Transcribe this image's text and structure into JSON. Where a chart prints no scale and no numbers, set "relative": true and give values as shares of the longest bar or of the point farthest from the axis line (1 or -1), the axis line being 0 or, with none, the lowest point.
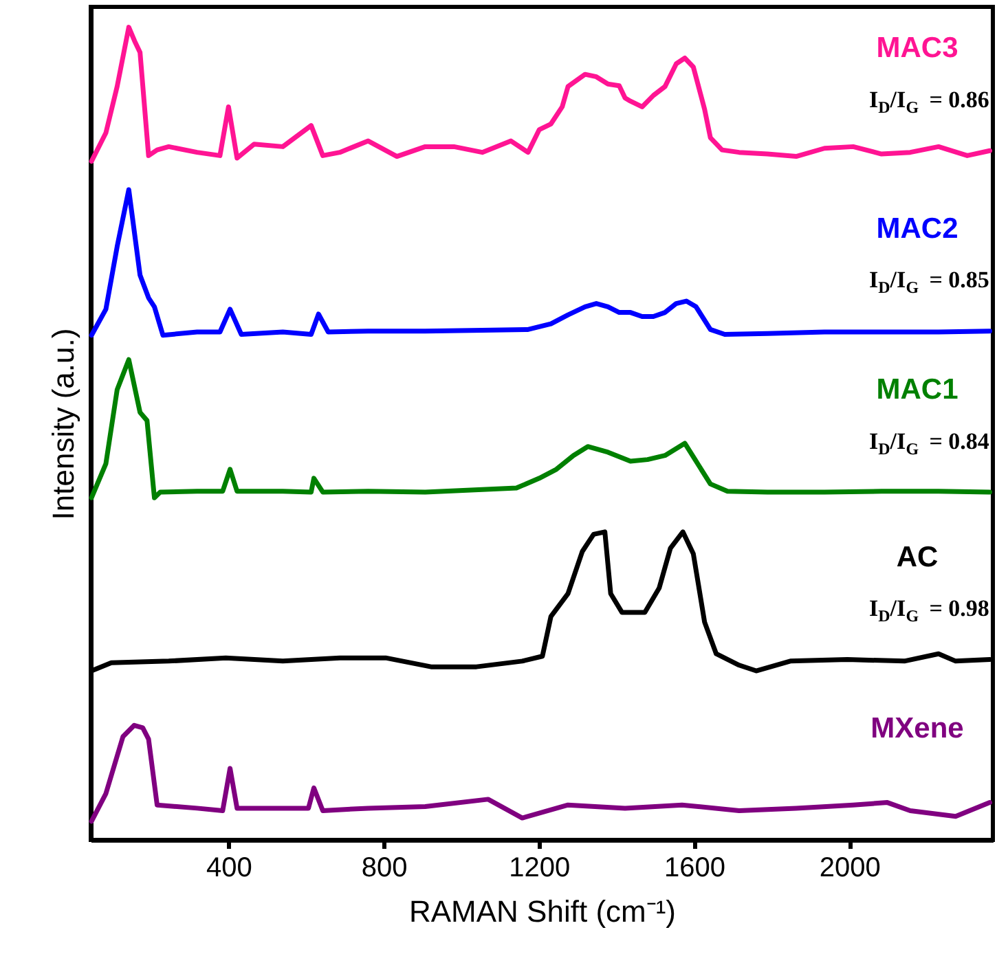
{
  "chart_data": {
    "type": "line",
    "relative": true,
    "xlabel": "RAMAN Shift (cm⁻¹)",
    "ylabel": "Intensity (a.u.)",
    "xlim": [
      45,
      2370
    ],
    "xticks": [
      400,
      800,
      1200,
      1600,
      2000
    ],
    "grid": false,
    "legend": false,
    "series": [
      {
        "name": "MAC3",
        "color": "#ff1493",
        "x": [
          47,
          84,
          113,
          143,
          158,
          172,
          194,
          216,
          246,
          319,
          378,
          400,
          422,
          466,
          540,
          613,
          643,
          687,
          760,
          834,
          907,
          981,
          1054,
          1128,
          1172,
          1201,
          1231,
          1260,
          1275,
          1304,
          1319,
          1348,
          1378,
          1407,
          1422,
          1436,
          1466,
          1495,
          1525,
          1554,
          1576,
          1598,
          1627,
          1642,
          1672,
          1716,
          1789,
          1863,
          1936,
          2010,
          2083,
          2157,
          2230,
          2304,
          2362
        ],
        "values": [
          0.835,
          0.87,
          0.927,
          1.0,
          0.983,
          0.969,
          0.842,
          0.849,
          0.853,
          0.846,
          0.842,
          0.902,
          0.839,
          0.856,
          0.853,
          0.879,
          0.842,
          0.846,
          0.86,
          0.841,
          0.853,
          0.853,
          0.846,
          0.86,
          0.846,
          0.874,
          0.881,
          0.902,
          0.927,
          0.937,
          0.942,
          0.939,
          0.93,
          0.928,
          0.913,
          0.909,
          0.902,
          0.916,
          0.927,
          0.955,
          0.962,
          0.951,
          0.899,
          0.864,
          0.849,
          0.846,
          0.844,
          0.841,
          0.851,
          0.853,
          0.844,
          0.846,
          0.853,
          0.842,
          0.848
        ]
      },
      {
        "name": "MAC2",
        "color": "#0000ff",
        "x": [
          47,
          84,
          113,
          143,
          172,
          194,
          209,
          231,
          319,
          378,
          404,
          433,
          540,
          613,
          632,
          657,
          760,
          907,
          1054,
          1172,
          1231,
          1275,
          1319,
          1348,
          1378,
          1407,
          1436,
          1466,
          1495,
          1525,
          1554,
          1580,
          1605,
          1642,
          1679,
          1789,
          1936,
          2083,
          2230,
          2362
        ],
        "values": [
          0.621,
          0.653,
          0.73,
          0.8,
          0.695,
          0.667,
          0.656,
          0.621,
          0.625,
          0.625,
          0.653,
          0.622,
          0.625,
          0.622,
          0.647,
          0.625,
          0.626,
          0.626,
          0.627,
          0.628,
          0.635,
          0.646,
          0.656,
          0.66,
          0.656,
          0.649,
          0.649,
          0.644,
          0.644,
          0.649,
          0.66,
          0.663,
          0.656,
          0.628,
          0.622,
          0.623,
          0.625,
          0.625,
          0.625,
          0.626
        ]
      },
      {
        "name": "MAC1",
        "color": "#008000",
        "x": [
          47,
          84,
          113,
          143,
          172,
          190,
          209,
          224,
          319,
          385,
          404,
          422,
          540,
          613,
          620,
          643,
          760,
          907,
          1054,
          1142,
          1201,
          1245,
          1289,
          1326,
          1378,
          1436,
          1480,
          1525,
          1576,
          1605,
          1642,
          1686,
          1789,
          1936,
          2083,
          2230,
          2362
        ],
        "values": [
          0.421,
          0.463,
          0.554,
          0.591,
          0.526,
          0.516,
          0.421,
          0.428,
          0.429,
          0.429,
          0.456,
          0.429,
          0.429,
          0.428,
          0.445,
          0.428,
          0.429,
          0.428,
          0.431,
          0.433,
          0.445,
          0.456,
          0.473,
          0.484,
          0.477,
          0.466,
          0.468,
          0.473,
          0.488,
          0.466,
          0.438,
          0.429,
          0.428,
          0.428,
          0.429,
          0.429,
          0.428
        ]
      },
      {
        "name": "AC",
        "color": "#000000",
        "x": [
          47,
          98,
          246,
          393,
          540,
          687,
          805,
          922,
          1039,
          1157,
          1209,
          1231,
          1275,
          1312,
          1341,
          1370,
          1385,
          1414,
          1473,
          1510,
          1539,
          1571,
          1598,
          1627,
          1657,
          1716,
          1760,
          1848,
          1995,
          2142,
          2230,
          2274,
          2362
        ],
        "values": [
          0.208,
          0.218,
          0.22,
          0.224,
          0.22,
          0.224,
          0.224,
          0.213,
          0.213,
          0.22,
          0.226,
          0.275,
          0.303,
          0.355,
          0.376,
          0.379,
          0.303,
          0.28,
          0.28,
          0.31,
          0.359,
          0.379,
          0.352,
          0.268,
          0.229,
          0.215,
          0.208,
          0.22,
          0.222,
          0.22,
          0.229,
          0.22,
          0.222
        ]
      },
      {
        "name": "MXene",
        "color": "#800080",
        "x": [
          47,
          84,
          128,
          157,
          179,
          194,
          216,
          319,
          385,
          404,
          422,
          540,
          606,
          620,
          643,
          760,
          907,
          1069,
          1157,
          1275,
          1422,
          1569,
          1716,
          1863,
          2010,
          2098,
          2157,
          2274,
          2362
        ],
        "values": [
          0.023,
          0.057,
          0.127,
          0.141,
          0.138,
          0.124,
          0.043,
          0.039,
          0.036,
          0.088,
          0.039,
          0.039,
          0.039,
          0.064,
          0.036,
          0.039,
          0.041,
          0.05,
          0.027,
          0.043,
          0.039,
          0.043,
          0.036,
          0.039,
          0.043,
          0.046,
          0.036,
          0.029,
          0.046
        ]
      }
    ],
    "annotations": [
      "I$_{D}$/I$_{G}$ = 0.86",
      "I$_{D}$/I$_{G}$ = 0.85",
      "I$_{D}$/I$_{G}$ = 0.84",
      "I$_{D}$/I$_{G}$ = 0.98"
    ]
  }
}
